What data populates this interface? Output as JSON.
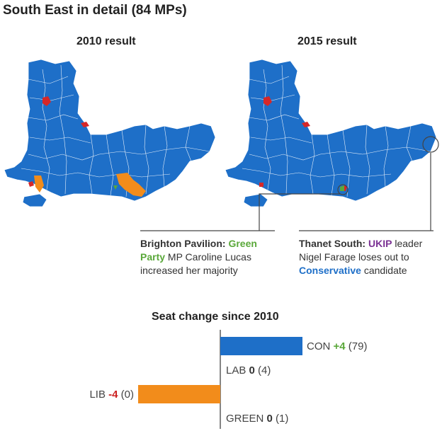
{
  "title": "South East in detail (84 MPs)",
  "maps": [
    {
      "label": "2010 result"
    },
    {
      "label": "2015 result"
    }
  ],
  "callouts": {
    "brighton": {
      "place": "Brighton Pavilion:",
      "party": "Green Party",
      "rest": "MP Caroline Lucas increased her majority"
    },
    "thanet": {
      "place": "Thanet South:",
      "party": "UKIP",
      "mid": "leader Nigel Farage loses out to",
      "party2": "Conservative",
      "end": "candidate"
    }
  },
  "colors": {
    "con": "#1e6fc8",
    "lab": "#d62728",
    "lib": "#f28c1b",
    "green": "#5aa83a",
    "ukip": "#7b3294",
    "border": "#ffffff"
  },
  "chart_data": {
    "type": "bar",
    "title": "Seat change since 2010",
    "categories": [
      "CON",
      "LAB",
      "LIB",
      "GREEN"
    ],
    "change": [
      4,
      0,
      -4,
      0
    ],
    "change_labels": [
      "+4",
      "0",
      "-4",
      "0"
    ],
    "seats": [
      79,
      4,
      0,
      1
    ],
    "seat_labels": [
      "(79)",
      "(4)",
      "(0)",
      "(1)"
    ],
    "colors": [
      "#1e6fc8",
      "#d62728",
      "#f28c1b",
      "#5aa83a"
    ],
    "change_colors": [
      "#5aa83a",
      "#333333",
      "#cc2222",
      "#333333"
    ],
    "xlim": [
      -4,
      4
    ]
  }
}
